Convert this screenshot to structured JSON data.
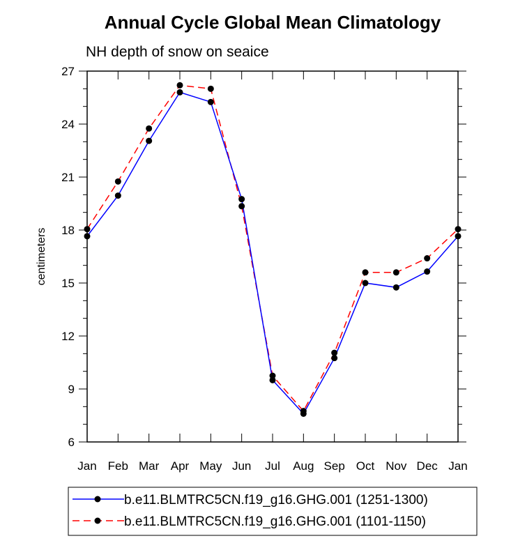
{
  "chart_data": {
    "type": "line",
    "title": "Annual Cycle Global Mean Climatology",
    "subtitle": "NH depth of snow on seaice",
    "xlabel": "",
    "ylabel": "centimeters",
    "categories": [
      "Jan",
      "Feb",
      "Mar",
      "Apr",
      "May",
      "Jun",
      "Jul",
      "Aug",
      "Sep",
      "Oct",
      "Nov",
      "Dec",
      "Jan"
    ],
    "ylim": [
      6,
      27
    ],
    "yticks": [
      6,
      9,
      12,
      15,
      18,
      21,
      24,
      27
    ],
    "series": [
      {
        "name": "b.e11.BLMTRC5CN.f19_g16.GHG.001 (1251-1300)",
        "color": "#0000ff",
        "style": "solid",
        "values": [
          17.65,
          19.95,
          23.05,
          25.8,
          25.25,
          19.75,
          9.5,
          7.6,
          10.75,
          15.0,
          14.75,
          15.65,
          17.65
        ]
      },
      {
        "name": "b.e11.BLMTRC5CN.f19_g16.GHG.001 (1101-1150)",
        "color": "#ff0000",
        "style": "dashed",
        "values": [
          18.05,
          20.75,
          23.75,
          26.2,
          26.0,
          19.35,
          9.75,
          7.75,
          11.05,
          15.6,
          15.6,
          16.4,
          18.05
        ]
      }
    ],
    "legend_position": "bottom",
    "marker_color": "#000000"
  }
}
